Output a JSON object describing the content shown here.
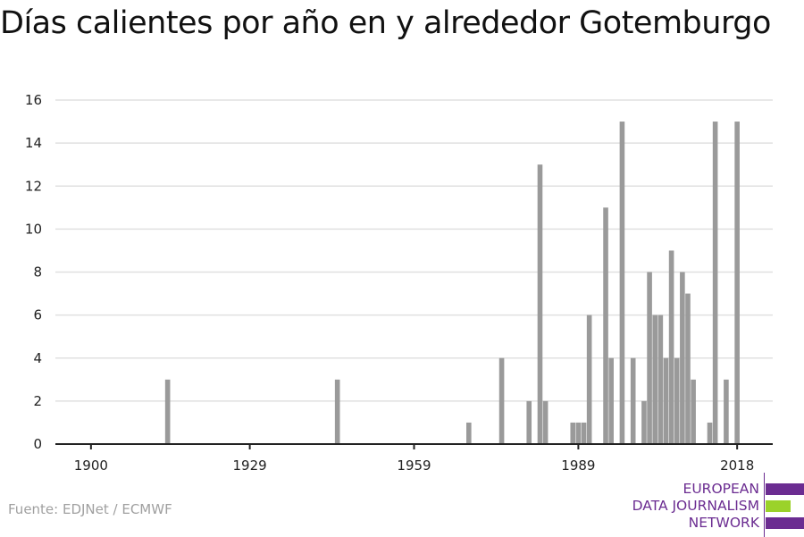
{
  "chart_data": {
    "type": "bar",
    "title": "Días calientes por año en y alrededor Gotemburgo",
    "xlabel": "",
    "ylabel": "",
    "x": [
      1914,
      1945,
      1969,
      1975,
      1980,
      1982,
      1983,
      1988,
      1989,
      1990,
      1991,
      1994,
      1995,
      1997,
      1999,
      2001,
      2002,
      2003,
      2004,
      2005,
      2006,
      2007,
      2008,
      2009,
      2010,
      2013,
      2014,
      2016,
      2018
    ],
    "values": [
      3,
      3,
      1,
      4,
      2,
      13,
      2,
      1,
      1,
      1,
      6,
      11,
      4,
      15,
      4,
      2,
      8,
      6,
      6,
      4,
      9,
      4,
      8,
      7,
      3,
      1,
      15,
      3,
      15
    ],
    "xticks": [
      "1900",
      "1929",
      "1959",
      "1989",
      "2018"
    ],
    "yticks": [
      "0",
      "2",
      "4",
      "6",
      "8",
      "10",
      "12",
      "14",
      "16"
    ],
    "xlim": [
      1893.5,
      2024.5
    ],
    "ylim": [
      0,
      16
    ],
    "grid": true,
    "bar_color": "#9a9a9a"
  },
  "source": "Fuente: EDJNet / ECMWF",
  "logo": {
    "lines": [
      "EUROPEAN",
      "DATA JOURNALISM",
      "NETWORK"
    ],
    "colors": [
      "#6b2c91",
      "#9bd22a",
      "#6b2c91"
    ]
  }
}
